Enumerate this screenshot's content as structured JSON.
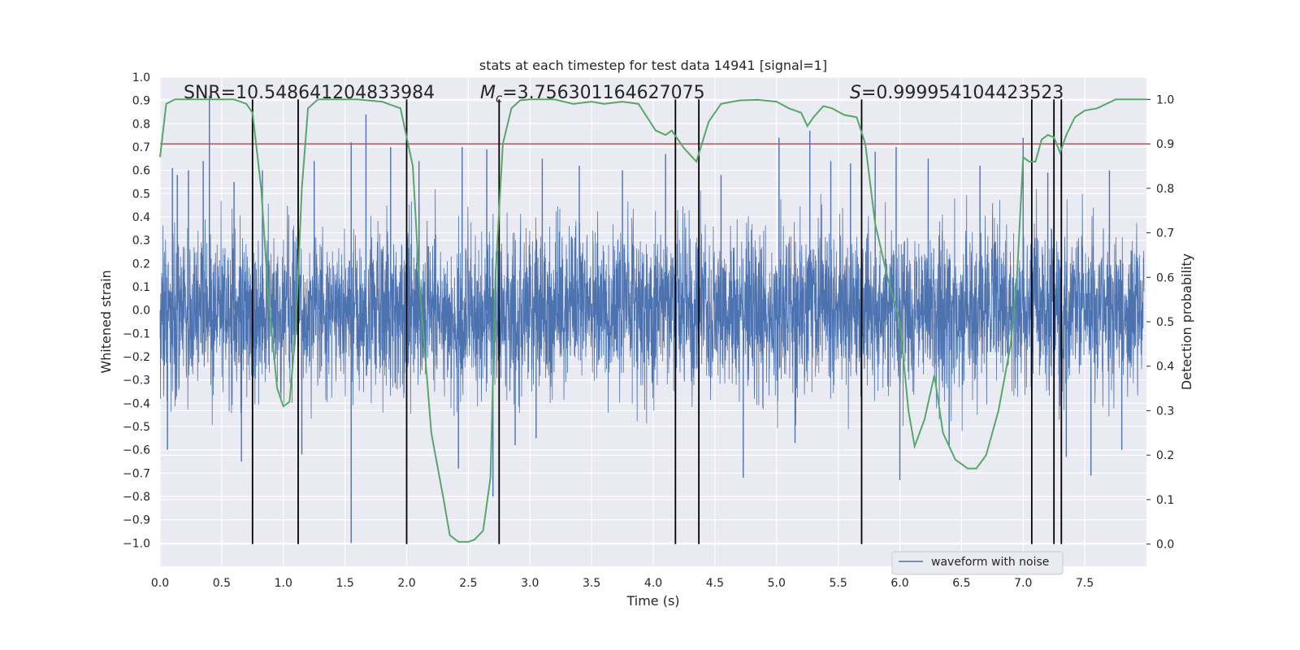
{
  "chart_data": {
    "type": "line",
    "title": "stats at each timestep for test data 14941 [signal=1]",
    "xlabel": "Time (s)",
    "ylabel": "Whitened strain",
    "y2label": "Detection probability",
    "xlim": [
      0,
      8
    ],
    "ylim": [
      -1.1,
      1.0
    ],
    "y2lim": [
      -0.05,
      1.05
    ],
    "xticks": [
      "0.0",
      "0.5",
      "1.0",
      "1.5",
      "2.0",
      "2.5",
      "3.0",
      "3.5",
      "4.0",
      "4.5",
      "5.0",
      "5.5",
      "6.0",
      "6.5",
      "7.0",
      "7.5"
    ],
    "yticks": [
      "1.0",
      "0.9",
      "0.8",
      "0.7",
      "0.6",
      "0.5",
      "0.4",
      "0.3",
      "0.2",
      "0.1",
      "0.0",
      "−0.1",
      "−0.2",
      "−0.3",
      "−0.4",
      "−0.5",
      "−0.6",
      "−0.7",
      "−0.8",
      "−0.9",
      "−1.0"
    ],
    "y2ticks": [
      "1.0",
      "0.9",
      "0.8",
      "0.7",
      "0.6",
      "0.5",
      "0.4",
      "0.3",
      "0.2",
      "0.1",
      "0.0"
    ],
    "annotations": {
      "snr": "SNR=10.548641204833984",
      "mc_symbol": "M",
      "mc_sub": "c",
      "mc_value": "=3.756301164627075",
      "s_symbol": "S",
      "s_value": "=0.999954104423523"
    },
    "threshold_probability": 0.9,
    "vertical_lines_time": [
      0.75,
      1.12,
      2.0,
      2.75,
      4.18,
      4.37,
      5.69,
      7.07,
      7.25,
      7.31
    ],
    "legend": {
      "label": "waveform with noise",
      "position": "lower-right"
    },
    "waveform": {
      "name": "waveform with noise",
      "color": "#4c72b0",
      "spikes": [
        [
          0.4,
          0.92
        ],
        [
          0.1,
          0.61
        ],
        [
          0.14,
          0.58
        ],
        [
          0.23,
          0.6
        ],
        [
          0.35,
          0.64
        ],
        [
          0.6,
          0.55
        ],
        [
          0.83,
          0.6
        ],
        [
          1.25,
          0.64
        ],
        [
          1.55,
          0.72
        ],
        [
          1.67,
          0.84
        ],
        [
          1.87,
          0.7
        ],
        [
          2.1,
          0.64
        ],
        [
          2.45,
          0.7
        ],
        [
          2.65,
          0.69
        ],
        [
          3.1,
          0.65
        ],
        [
          3.4,
          0.62
        ],
        [
          3.75,
          0.6
        ],
        [
          4.1,
          0.67
        ],
        [
          4.55,
          0.58
        ],
        [
          5.02,
          0.74
        ],
        [
          5.27,
          0.77
        ],
        [
          5.44,
          0.64
        ],
        [
          5.6,
          0.63
        ],
        [
          5.8,
          0.68
        ],
        [
          5.97,
          0.7
        ],
        [
          6.23,
          0.65
        ],
        [
          6.65,
          0.62
        ],
        [
          7.0,
          0.74
        ],
        [
          7.2,
          0.59
        ],
        [
          7.7,
          0.6
        ],
        [
          0.06,
          -0.6
        ],
        [
          0.66,
          -0.65
        ],
        [
          1.15,
          -0.62
        ],
        [
          1.55,
          -1.0
        ],
        [
          2.42,
          -0.68
        ],
        [
          2.7,
          -0.8
        ],
        [
          2.88,
          -0.58
        ],
        [
          4.73,
          -0.72
        ],
        [
          6.0,
          -0.73
        ],
        [
          7.55,
          -0.71
        ],
        [
          7.35,
          -0.63
        ],
        [
          3.05,
          -0.55
        ],
        [
          5.15,
          -0.57
        ],
        [
          6.4,
          -0.59
        ],
        [
          7.8,
          -0.6
        ]
      ],
      "envelope_upper": 0.4,
      "envelope_lower": -0.4
    },
    "series": [
      {
        "name": "detection probability",
        "color": "#55a868",
        "x": [
          0.0,
          0.05,
          0.12,
          0.45,
          0.6,
          0.7,
          0.75,
          0.82,
          0.88,
          0.95,
          1.0,
          1.05,
          1.1,
          1.15,
          1.2,
          1.28,
          1.6,
          1.8,
          1.95,
          2.05,
          2.1,
          2.2,
          2.3,
          2.35,
          2.42,
          2.5,
          2.55,
          2.62,
          2.68,
          2.72,
          2.78,
          2.85,
          2.92,
          3.0,
          3.2,
          3.35,
          3.5,
          3.6,
          3.75,
          3.88,
          3.95,
          4.02,
          4.1,
          4.15,
          4.25,
          4.35,
          4.45,
          4.55,
          4.7,
          4.85,
          5.0,
          5.1,
          5.2,
          5.25,
          5.3,
          5.38,
          5.45,
          5.55,
          5.65,
          5.72,
          5.8,
          5.9,
          6.0,
          6.07,
          6.12,
          6.2,
          6.28,
          6.35,
          6.45,
          6.55,
          6.62,
          6.7,
          6.8,
          6.9,
          6.95,
          7.0,
          7.05,
          7.1,
          7.15,
          7.2,
          7.25,
          7.3,
          7.35,
          7.42,
          7.5,
          7.6,
          7.75,
          8.0
        ],
        "values": [
          0.87,
          0.99,
          1.0,
          1.0,
          1.0,
          0.99,
          0.97,
          0.8,
          0.55,
          0.35,
          0.31,
          0.32,
          0.48,
          0.8,
          0.98,
          1.0,
          1.0,
          0.995,
          0.98,
          0.85,
          0.6,
          0.25,
          0.1,
          0.02,
          0.005,
          0.005,
          0.01,
          0.03,
          0.15,
          0.6,
          0.9,
          0.98,
          0.998,
          1.0,
          1.0,
          0.99,
          0.995,
          0.99,
          0.995,
          0.99,
          0.96,
          0.93,
          0.92,
          0.93,
          0.89,
          0.86,
          0.95,
          0.99,
          0.998,
          0.999,
          0.995,
          0.98,
          0.97,
          0.94,
          0.96,
          0.985,
          0.98,
          0.965,
          0.96,
          0.9,
          0.72,
          0.6,
          0.5,
          0.3,
          0.22,
          0.28,
          0.38,
          0.25,
          0.19,
          0.17,
          0.17,
          0.2,
          0.3,
          0.45,
          0.6,
          0.87,
          0.86,
          0.86,
          0.91,
          0.92,
          0.915,
          0.88,
          0.92,
          0.96,
          0.975,
          0.98,
          1.0,
          1.0
        ]
      }
    ]
  }
}
